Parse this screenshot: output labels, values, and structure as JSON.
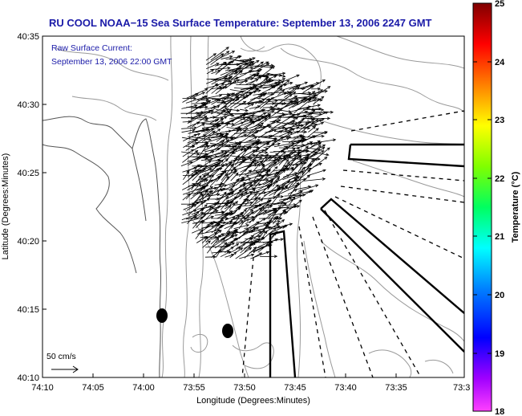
{
  "title": "RU COOL  NOAA−15  Sea Surface Temperature:  September 13, 2006 2247 GMT",
  "legend": {
    "line1": "Raw Surface Current:",
    "line2": "September 13, 2006 22:00 GMT"
  },
  "scale_label": "50 cm/s",
  "xaxis": {
    "label": "Longitude (Degrees:Minutes)",
    "ticks": [
      "74:10",
      "74:05",
      "74:00",
      "73:55",
      "73:50",
      "73:45",
      "73:40",
      "73:35",
      "73:3"
    ]
  },
  "yaxis": {
    "label": "Latitude (Degrees:Minutes)",
    "ticks": [
      "40:35",
      "40:30",
      "40:25",
      "40:20",
      "40:15",
      "40:10"
    ]
  },
  "colorbar": {
    "label": "Temperature (°C)",
    "min": 18,
    "max": 25,
    "ticks": [
      "25",
      "24",
      "23",
      "22",
      "21",
      "20",
      "19",
      "18"
    ],
    "colors": [
      "#ff00ff",
      "#8000ff",
      "#0000ff",
      "#0080ff",
      "#00ffff",
      "#00ff80",
      "#80ff00",
      "#ffff00",
      "#ff8000",
      "#ff0000",
      "#800000"
    ]
  },
  "colors": {
    "title": "#1a1aa8",
    "contour": "#909090"
  }
}
